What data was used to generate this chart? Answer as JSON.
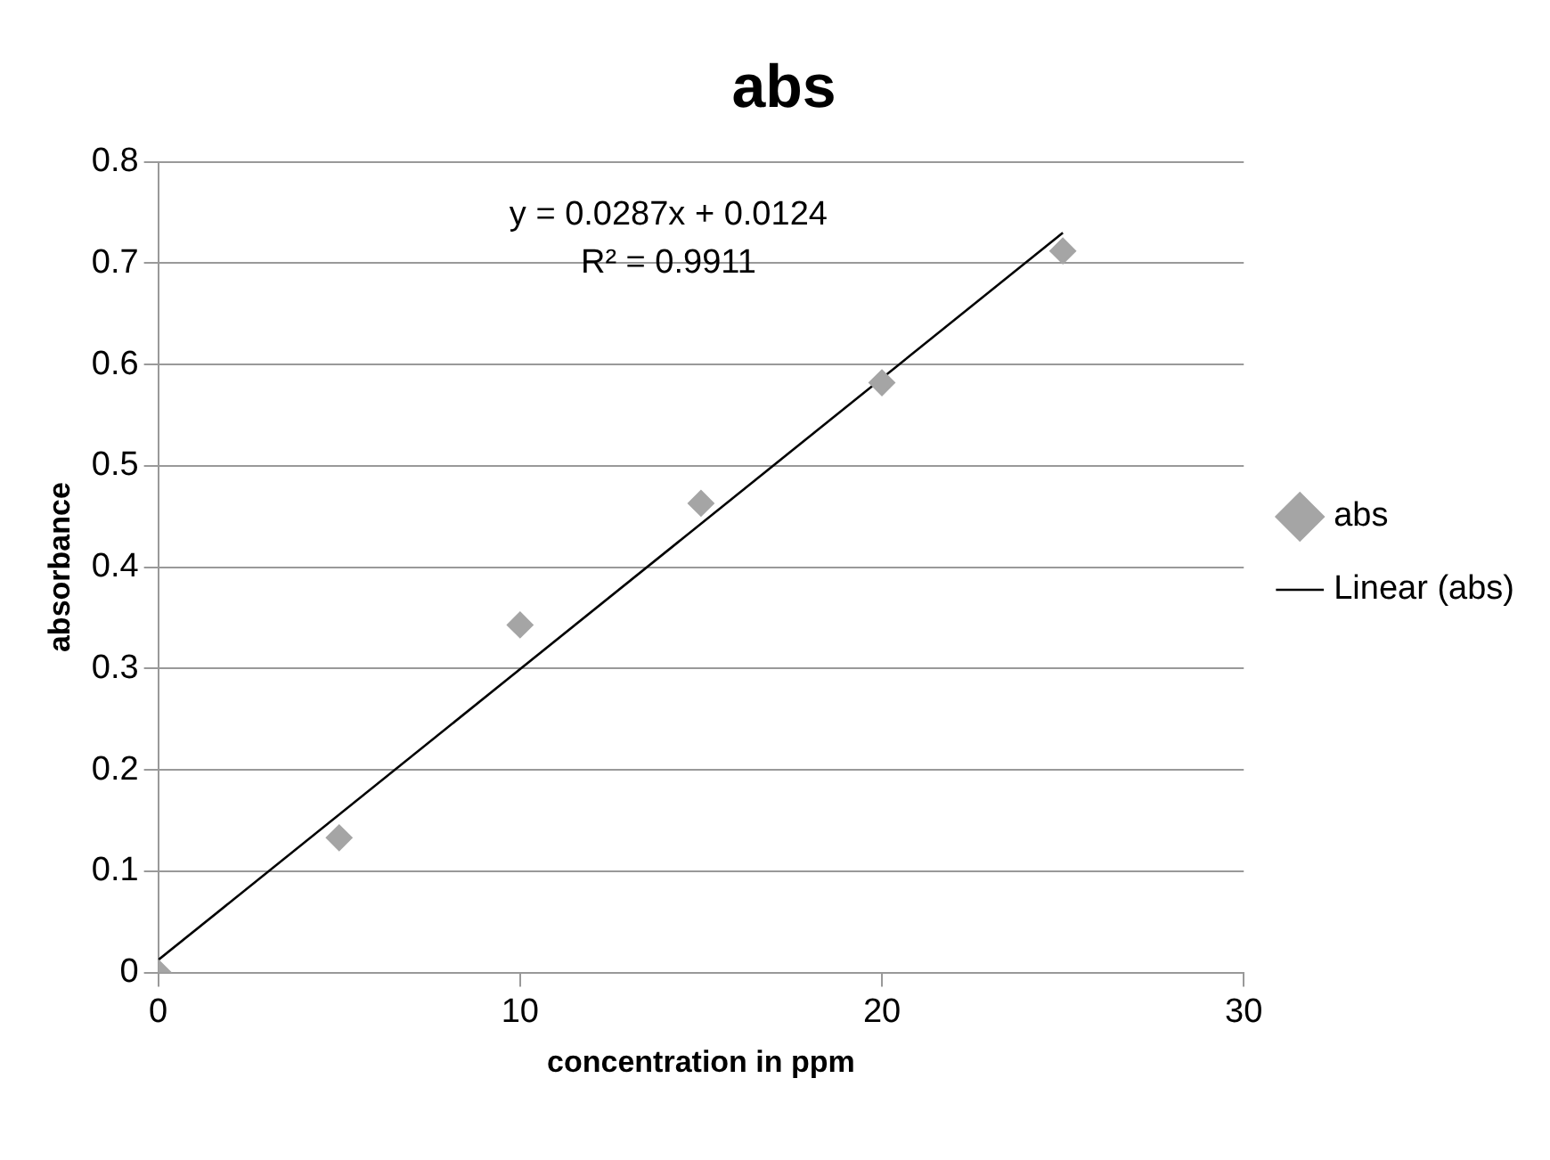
{
  "chart_data": {
    "type": "scatter",
    "title": "abs",
    "xlabel": "concentration in ppm",
    "ylabel": "absorbance",
    "x": [
      0,
      5,
      10,
      15,
      20,
      25
    ],
    "series": [
      {
        "name": "abs",
        "color": "#a5a5a5",
        "values": [
          0,
          0.133,
          0.343,
          0.463,
          0.582,
          0.712
        ],
        "marker": "diamond"
      },
      {
        "name": "Linear (abs)",
        "type": "line",
        "color": "#000000",
        "x": [
          0,
          25
        ],
        "values": [
          0.0124,
          0.7299
        ],
        "marker": "none"
      }
    ],
    "annotations": [
      "y = 0.0287x + 0.0124",
      "R² = 0.9911"
    ],
    "xlim": [
      0,
      30
    ],
    "xticks": [
      0,
      10,
      20,
      30
    ],
    "ylim": [
      0,
      0.8
    ],
    "yticks": [
      0,
      0.1,
      0.2,
      0.3,
      0.4,
      0.5,
      0.6,
      0.7,
      0.8
    ],
    "grid": "y",
    "legend": "right"
  }
}
